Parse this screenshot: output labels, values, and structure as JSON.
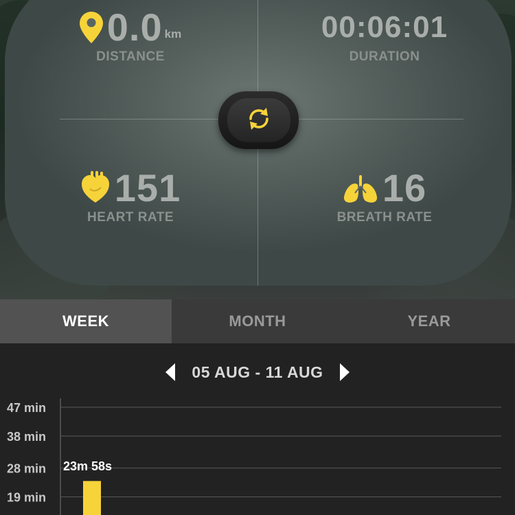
{
  "stats": {
    "distance": {
      "value": "0.0",
      "unit": "km",
      "label": "DISTANCE",
      "icon": "location-pin-icon"
    },
    "duration": {
      "value": "00:06:01",
      "label": "DURATION"
    },
    "heart_rate": {
      "value": "151",
      "label": "HEART RATE",
      "icon": "heart-icon"
    },
    "breath_rate": {
      "value": "16",
      "label": "BREATH RATE",
      "icon": "lungs-icon"
    }
  },
  "refresh": {
    "icon": "refresh-icon"
  },
  "colors": {
    "accent": "#f7d33a",
    "tab_active": "#525252",
    "tab_inactive": "#3a3a3a",
    "chart_bg": "#222222"
  },
  "tabs": [
    {
      "label": "WEEK",
      "active": true
    },
    {
      "label": "MONTH",
      "active": false
    },
    {
      "label": "YEAR",
      "active": false
    }
  ],
  "date_nav": {
    "range": "05 AUG - 11 AUG",
    "prev_icon": "chevron-left-icon",
    "next_icon": "chevron-right-icon"
  },
  "chart_data": {
    "type": "bar",
    "y_ticks": [
      "47 min",
      "38 min",
      "28 min",
      "19 min"
    ],
    "y_tick_values": [
      47,
      38,
      28,
      19
    ],
    "bars": [
      {
        "value_min": 23.97,
        "label": "23m 58s"
      }
    ],
    "grid": true
  }
}
